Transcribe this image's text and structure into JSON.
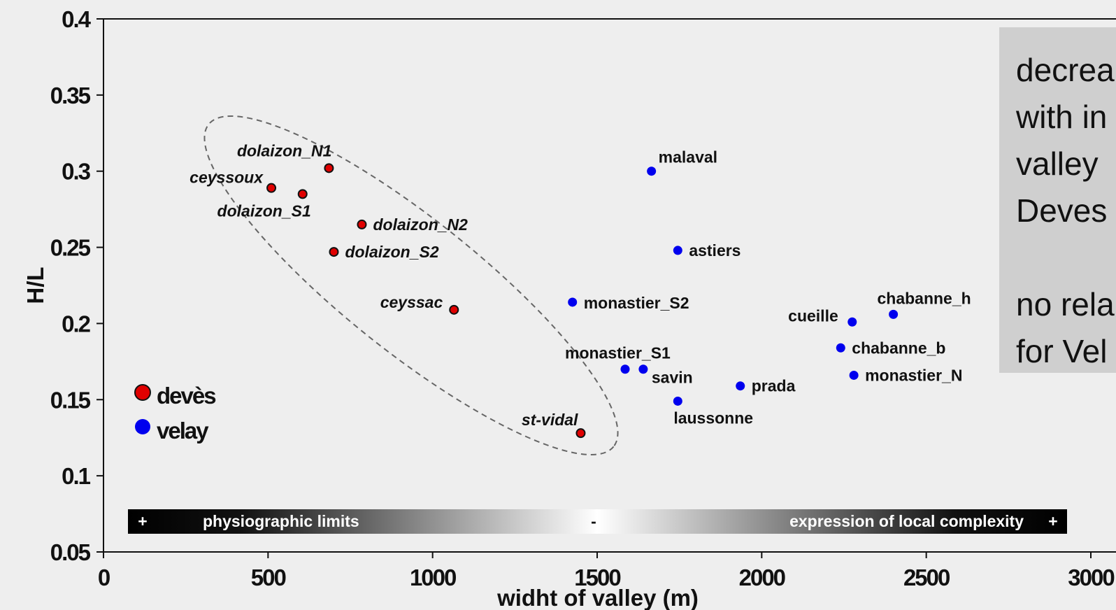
{
  "chart_data": {
    "type": "scatter",
    "title": "",
    "xlabel": "widht of valley (m)",
    "ylabel": "H/L",
    "xlim": [
      0,
      3000
    ],
    "ylim": [
      0.05,
      0.4
    ],
    "x_ticks": [
      "0",
      "500",
      "1000",
      "1500",
      "2000",
      "2500",
      "3000"
    ],
    "y_ticks": [
      "0.05",
      "0.1",
      "0.15",
      "0.2",
      "0.25",
      "0.3",
      "0.35",
      "0.4"
    ],
    "grid": false,
    "legend_position": "bottom-left",
    "series": [
      {
        "name": "devès",
        "color": "#e00000",
        "points": [
          {
            "label": "dolaizon_N1",
            "x": 685,
            "y": 0.302
          },
          {
            "label": "ceyssoux",
            "x": 510,
            "y": 0.289
          },
          {
            "label": "dolaizon_S1",
            "x": 605,
            "y": 0.285
          },
          {
            "label": "dolaizon_N2",
            "x": 785,
            "y": 0.265
          },
          {
            "label": "dolaizon_S2",
            "x": 700,
            "y": 0.247
          },
          {
            "label": "ceyssac",
            "x": 1065,
            "y": 0.209
          },
          {
            "label": "st-vidal",
            "x": 1450,
            "y": 0.128
          }
        ]
      },
      {
        "name": "velay",
        "color": "#0000ee",
        "points": [
          {
            "label": "malaval",
            "x": 1665,
            "y": 0.3
          },
          {
            "label": "astiers",
            "x": 1745,
            "y": 0.248
          },
          {
            "label": "monastier_S2",
            "x": 1425,
            "y": 0.214
          },
          {
            "label": "cueille",
            "x": 2275,
            "y": 0.201
          },
          {
            "label": "chabanne_h",
            "x": 2400,
            "y": 0.206
          },
          {
            "label": "chabanne_b",
            "x": 2240,
            "y": 0.184
          },
          {
            "label": "monastier_S1",
            "x": 1585,
            "y": 0.17
          },
          {
            "label": "savin",
            "x": 1640,
            "y": 0.17
          },
          {
            "label": "prada",
            "x": 1935,
            "y": 0.159
          },
          {
            "label": "monastier_N",
            "x": 2280,
            "y": 0.166
          },
          {
            "label": "laussonne",
            "x": 1745,
            "y": 0.149
          }
        ]
      }
    ],
    "gradient_bar": {
      "left_sign": "+",
      "left_text": "physiographic limits",
      "middle_sign": "-",
      "right_text": "expression of local complexity",
      "right_sign": "+"
    },
    "note_lines": [
      "decrea",
      "with in",
      "valley",
      "Deves",
      "",
      "no rela",
      "for Vel"
    ]
  }
}
